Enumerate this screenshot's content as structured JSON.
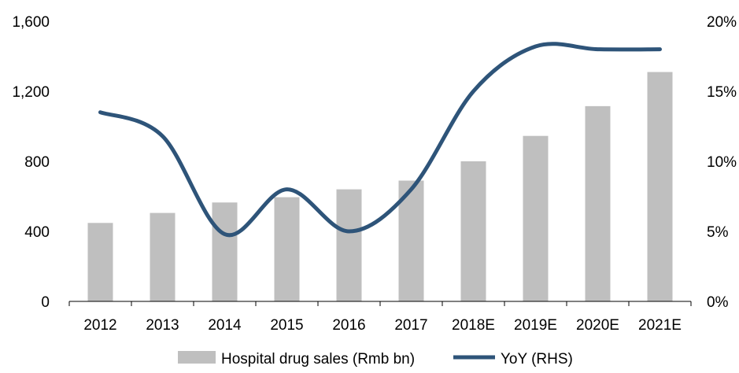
{
  "chart_data": {
    "type": "bar",
    "title": "",
    "categories": [
      "2012",
      "2013",
      "2014",
      "2015",
      "2016",
      "2017",
      "2018E",
      "2019E",
      "2020E",
      "2021E"
    ],
    "series": [
      {
        "name": "Hospital drug sales (Rmb bn)",
        "type": "bar",
        "axis": "left",
        "color": "#bfbfbf",
        "values": [
          448,
          505,
          565,
          595,
          640,
          690,
          800,
          945,
          1115,
          1310
        ]
      },
      {
        "name": "YoY (RHS)",
        "type": "line",
        "axis": "right",
        "color": "#2e5479",
        "values": [
          13.5,
          11.8,
          4.8,
          8.0,
          5.0,
          8.0,
          15.0,
          18.2,
          18.0,
          18.0
        ]
      }
    ],
    "y_left": {
      "min": 0,
      "max": 1600,
      "ticks": [
        0,
        400,
        800,
        1200,
        1600
      ],
      "tick_labels": [
        "0",
        "400",
        "800",
        "1,200",
        "1,600"
      ]
    },
    "y_right": {
      "min": 0,
      "max": 20,
      "ticks": [
        0,
        5,
        10,
        15,
        20
      ],
      "tick_labels": [
        "0%",
        "5%",
        "10%",
        "15%",
        "20%"
      ]
    },
    "grid": false,
    "legend_position": "bottom"
  }
}
